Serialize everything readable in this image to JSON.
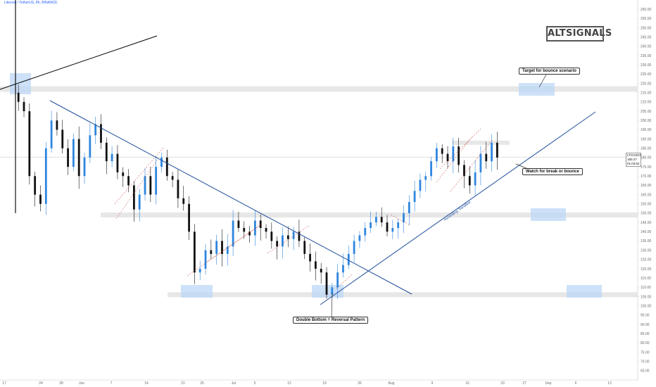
{
  "header": {
    "symbol_text": "Litecoin / TetherUS, 8h, BINANCE"
  },
  "logo": {
    "text": "ALTSIGNALS"
  },
  "annotations": {
    "target": "Target for bounce scenario",
    "watch": "Watch for break or bounce",
    "double_bottom": "Double Bottom = Reversal Pattern",
    "trendline": "Ascending Trendline"
  },
  "price_badge": {
    "symbol": "LTCUSDT",
    "price": "180.27",
    "countdown": "01:03:52"
  },
  "colors": {
    "up": "#2e86de",
    "down": "#111111",
    "trendline": "#1f4e9c",
    "zone": "#e3e3e3",
    "zone_blue": "#bcd7f5"
  },
  "chart_data": {
    "type": "candlestick",
    "title": "Litecoin / TetherUS, 8h, BINANCE",
    "ylim": [
      60,
      265
    ],
    "y_ticks": [
      65,
      70,
      75,
      80,
      85,
      90,
      95,
      100,
      105,
      110,
      115,
      120,
      125,
      130,
      135,
      140,
      145,
      150,
      155,
      160,
      165,
      170,
      175,
      180,
      185,
      190,
      195,
      200,
      205,
      210,
      215,
      220,
      225,
      230,
      235,
      240,
      245,
      250,
      255,
      260
    ],
    "x_ticks": [
      "17",
      "24",
      "28",
      "Jun",
      "7",
      "14",
      "21",
      "25",
      "Jul",
      "5",
      "12",
      "19",
      "26",
      "Aug",
      "9",
      "16",
      "23",
      "27",
      "Sep",
      "6",
      "13"
    ],
    "current_price": 180.27,
    "price_path": [
      [
        0,
        215
      ],
      [
        1,
        210
      ],
      [
        2,
        205
      ],
      [
        3,
        170
      ],
      [
        4,
        160
      ],
      [
        5,
        155
      ],
      [
        6,
        185
      ],
      [
        7,
        200
      ],
      [
        8,
        195
      ],
      [
        9,
        185
      ],
      [
        10,
        175
      ],
      [
        11,
        190
      ],
      [
        12,
        170
      ],
      [
        13,
        180
      ],
      [
        14,
        192
      ],
      [
        15,
        198
      ],
      [
        16,
        188
      ],
      [
        17,
        178
      ],
      [
        18,
        182
      ],
      [
        19,
        172
      ],
      [
        20,
        170
      ],
      [
        21,
        165
      ],
      [
        22,
        152
      ],
      [
        23,
        160
      ],
      [
        24,
        170
      ],
      [
        25,
        160
      ],
      [
        26,
        175
      ],
      [
        27,
        180
      ],
      [
        28,
        170
      ],
      [
        29,
        168
      ],
      [
        30,
        158
      ],
      [
        31,
        155
      ],
      [
        32,
        140
      ],
      [
        33,
        118
      ],
      [
        34,
        120
      ],
      [
        35,
        130
      ],
      [
        36,
        128
      ],
      [
        37,
        135
      ],
      [
        38,
        128
      ],
      [
        39,
        132
      ],
      [
        40,
        146
      ],
      [
        41,
        142
      ],
      [
        42,
        140
      ],
      [
        43,
        138
      ],
      [
        44,
        146
      ],
      [
        45,
        142
      ],
      [
        46,
        140
      ],
      [
        47,
        135
      ],
      [
        48,
        132
      ],
      [
        49,
        138
      ],
      [
        50,
        136
      ],
      [
        51,
        140
      ],
      [
        52,
        135
      ],
      [
        53,
        128
      ],
      [
        54,
        124
      ],
      [
        55,
        120
      ],
      [
        56,
        118
      ],
      [
        57,
        106
      ],
      [
        58,
        110
      ],
      [
        59,
        118
      ],
      [
        60,
        122
      ],
      [
        61,
        128
      ],
      [
        62,
        135
      ],
      [
        63,
        138
      ],
      [
        64,
        142
      ],
      [
        65,
        145
      ],
      [
        66,
        148
      ],
      [
        67,
        145
      ],
      [
        68,
        140
      ],
      [
        69,
        142
      ],
      [
        70,
        145
      ],
      [
        71,
        150
      ],
      [
        72,
        156
      ],
      [
        73,
        162
      ],
      [
        74,
        168
      ],
      [
        75,
        170
      ],
      [
        76,
        178
      ],
      [
        77,
        185
      ],
      [
        78,
        182
      ],
      [
        79,
        178
      ],
      [
        80,
        186
      ],
      [
        81,
        176
      ],
      [
        82,
        170
      ],
      [
        83,
        165
      ],
      [
        84,
        172
      ],
      [
        85,
        182
      ],
      [
        86,
        178
      ],
      [
        87,
        188
      ],
      [
        88,
        180
      ]
    ],
    "levels": [
      {
        "name": "resistance",
        "price": 217
      },
      {
        "name": "mid-support",
        "price": 149
      },
      {
        "name": "low-support",
        "price": 106
      },
      {
        "name": "recent-high",
        "price": 188
      }
    ],
    "grid": false
  }
}
